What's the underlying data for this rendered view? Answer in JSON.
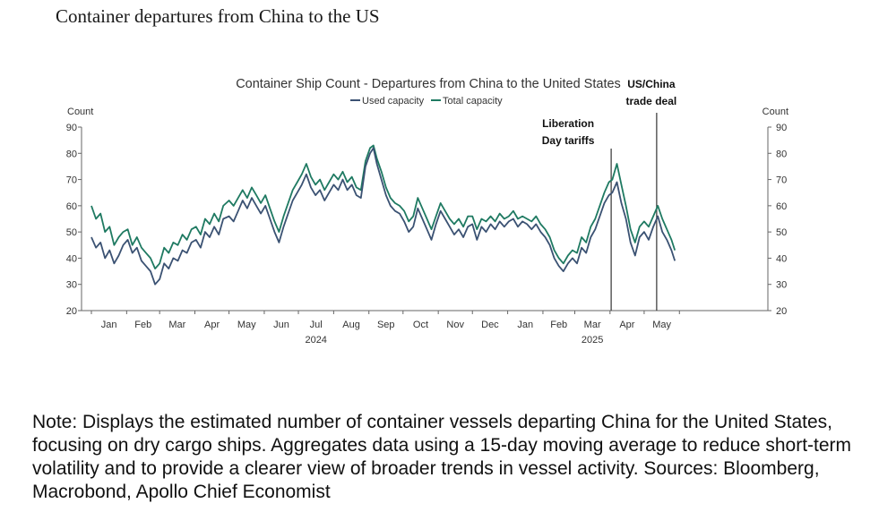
{
  "page": {
    "title": "Container departures from China to the US",
    "note": "Note: Displays the estimated number of container vessels departing China for the United States, focusing on dry cargo ships. Aggregates data using a 15-day moving average to reduce short-term volatility and to provide a clearer view of broader trends in vessel activity. Sources: Bloomberg, Macrobond, Apollo Chief Economist"
  },
  "chart_data": {
    "type": "line",
    "title": "Container Ship Count - Departures from China to the United States",
    "ylabel_left": "Count",
    "ylabel_right": "Count",
    "ylim": [
      20,
      90
    ],
    "yticks": [
      20,
      30,
      40,
      50,
      60,
      70,
      80,
      90
    ],
    "x_months": [
      "Jan",
      "Feb",
      "Mar",
      "Apr",
      "May",
      "Jun",
      "Jul",
      "Aug",
      "Sep",
      "Oct",
      "Nov",
      "Dec",
      "Jan",
      "Feb",
      "Mar",
      "Apr",
      "May"
    ],
    "x_years": [
      {
        "label": "2024",
        "month_index": 6
      },
      {
        "label": "2025",
        "month_index": 14
      }
    ],
    "legend_position": "top-center",
    "grid": false,
    "colors": {
      "used_capacity": "#3b5273",
      "total_capacity": "#1f7a62",
      "axis": "#666666",
      "text": "#333333"
    },
    "annotations": [
      {
        "label_lines": [
          "Liberation",
          "Day tariffs"
        ],
        "date": "2025-04-02"
      },
      {
        "label_lines": [
          "US/China",
          "trade deal"
        ],
        "date": "2025-05-12"
      }
    ],
    "series": [
      {
        "name": "Used capacity",
        "key": "used_capacity",
        "points": [
          [
            "2024-01-01",
            48
          ],
          [
            "2024-01-05",
            44
          ],
          [
            "2024-01-09",
            46
          ],
          [
            "2024-01-13",
            40
          ],
          [
            "2024-01-17",
            43
          ],
          [
            "2024-01-21",
            38
          ],
          [
            "2024-01-25",
            41
          ],
          [
            "2024-01-29",
            45
          ],
          [
            "2024-02-02",
            47
          ],
          [
            "2024-02-06",
            42
          ],
          [
            "2024-02-10",
            44
          ],
          [
            "2024-02-14",
            39
          ],
          [
            "2024-02-18",
            37
          ],
          [
            "2024-02-22",
            35
          ],
          [
            "2024-02-26",
            30
          ],
          [
            "2024-03-01",
            32
          ],
          [
            "2024-03-05",
            38
          ],
          [
            "2024-03-09",
            36
          ],
          [
            "2024-03-13",
            40
          ],
          [
            "2024-03-17",
            39
          ],
          [
            "2024-03-21",
            43
          ],
          [
            "2024-03-25",
            42
          ],
          [
            "2024-03-29",
            46
          ],
          [
            "2024-04-02",
            47
          ],
          [
            "2024-04-06",
            44
          ],
          [
            "2024-04-10",
            50
          ],
          [
            "2024-04-14",
            48
          ],
          [
            "2024-04-18",
            52
          ],
          [
            "2024-04-22",
            49
          ],
          [
            "2024-04-26",
            55
          ],
          [
            "2024-05-01",
            56
          ],
          [
            "2024-05-05",
            54
          ],
          [
            "2024-05-09",
            58
          ],
          [
            "2024-05-13",
            62
          ],
          [
            "2024-05-17",
            59
          ],
          [
            "2024-05-21",
            63
          ],
          [
            "2024-05-25",
            60
          ],
          [
            "2024-05-29",
            57
          ],
          [
            "2024-06-02",
            60
          ],
          [
            "2024-06-06",
            55
          ],
          [
            "2024-06-10",
            50
          ],
          [
            "2024-06-14",
            46
          ],
          [
            "2024-06-18",
            52
          ],
          [
            "2024-06-22",
            57
          ],
          [
            "2024-06-26",
            62
          ],
          [
            "2024-06-30",
            65
          ],
          [
            "2024-07-04",
            68
          ],
          [
            "2024-07-08",
            72
          ],
          [
            "2024-07-12",
            67
          ],
          [
            "2024-07-16",
            64
          ],
          [
            "2024-07-20",
            66
          ],
          [
            "2024-07-24",
            62
          ],
          [
            "2024-07-28",
            65
          ],
          [
            "2024-08-01",
            68
          ],
          [
            "2024-08-05",
            66
          ],
          [
            "2024-08-09",
            70
          ],
          [
            "2024-08-13",
            66
          ],
          [
            "2024-08-17",
            68
          ],
          [
            "2024-08-21",
            64
          ],
          [
            "2024-08-25",
            63
          ],
          [
            "2024-08-29",
            75
          ],
          [
            "2024-09-02",
            80
          ],
          [
            "2024-09-05",
            82
          ],
          [
            "2024-09-08",
            76
          ],
          [
            "2024-09-12",
            70
          ],
          [
            "2024-09-16",
            64
          ],
          [
            "2024-09-20",
            60
          ],
          [
            "2024-09-24",
            58
          ],
          [
            "2024-09-28",
            57
          ],
          [
            "2024-10-02",
            54
          ],
          [
            "2024-10-06",
            50
          ],
          [
            "2024-10-10",
            52
          ],
          [
            "2024-10-14",
            59
          ],
          [
            "2024-10-18",
            55
          ],
          [
            "2024-10-22",
            51
          ],
          [
            "2024-10-26",
            47
          ],
          [
            "2024-10-30",
            53
          ],
          [
            "2024-11-03",
            58
          ],
          [
            "2024-11-07",
            55
          ],
          [
            "2024-11-11",
            52
          ],
          [
            "2024-11-15",
            49
          ],
          [
            "2024-11-19",
            51
          ],
          [
            "2024-11-23",
            48
          ],
          [
            "2024-11-27",
            52
          ],
          [
            "2024-12-01",
            53
          ],
          [
            "2024-12-05",
            47
          ],
          [
            "2024-12-09",
            52
          ],
          [
            "2024-12-13",
            50
          ],
          [
            "2024-12-17",
            53
          ],
          [
            "2024-12-21",
            51
          ],
          [
            "2024-12-25",
            54
          ],
          [
            "2024-12-29",
            52
          ],
          [
            "2025-01-02",
            54
          ],
          [
            "2025-01-06",
            55
          ],
          [
            "2025-01-10",
            52
          ],
          [
            "2025-01-14",
            54
          ],
          [
            "2025-01-18",
            53
          ],
          [
            "2025-01-22",
            51
          ],
          [
            "2025-01-26",
            53
          ],
          [
            "2025-01-30",
            50
          ],
          [
            "2025-02-03",
            48
          ],
          [
            "2025-02-07",
            45
          ],
          [
            "2025-02-11",
            40
          ],
          [
            "2025-02-15",
            37
          ],
          [
            "2025-02-19",
            35
          ],
          [
            "2025-02-23",
            38
          ],
          [
            "2025-02-27",
            40
          ],
          [
            "2025-03-03",
            38
          ],
          [
            "2025-03-07",
            44
          ],
          [
            "2025-03-11",
            42
          ],
          [
            "2025-03-15",
            48
          ],
          [
            "2025-03-19",
            51
          ],
          [
            "2025-03-23",
            56
          ],
          [
            "2025-03-27",
            61
          ],
          [
            "2025-03-31",
            64
          ],
          [
            "2025-04-03",
            65
          ],
          [
            "2025-04-07",
            69
          ],
          [
            "2025-04-11",
            61
          ],
          [
            "2025-04-15",
            55
          ],
          [
            "2025-04-19",
            46
          ],
          [
            "2025-04-23",
            41
          ],
          [
            "2025-04-27",
            48
          ],
          [
            "2025-05-01",
            50
          ],
          [
            "2025-05-05",
            47
          ],
          [
            "2025-05-09",
            52
          ],
          [
            "2025-05-13",
            56
          ],
          [
            "2025-05-17",
            50
          ],
          [
            "2025-05-21",
            47
          ],
          [
            "2025-05-25",
            43
          ],
          [
            "2025-05-28",
            39
          ]
        ]
      },
      {
        "name": "Total capacity",
        "key": "total_capacity",
        "points": [
          [
            "2024-01-01",
            60
          ],
          [
            "2024-01-05",
            55
          ],
          [
            "2024-01-09",
            57
          ],
          [
            "2024-01-13",
            50
          ],
          [
            "2024-01-17",
            52
          ],
          [
            "2024-01-21",
            45
          ],
          [
            "2024-01-25",
            48
          ],
          [
            "2024-01-29",
            50
          ],
          [
            "2024-02-02",
            51
          ],
          [
            "2024-02-06",
            45
          ],
          [
            "2024-02-10",
            48
          ],
          [
            "2024-02-14",
            44
          ],
          [
            "2024-02-18",
            42
          ],
          [
            "2024-02-22",
            40
          ],
          [
            "2024-02-26",
            36
          ],
          [
            "2024-03-01",
            38
          ],
          [
            "2024-03-05",
            44
          ],
          [
            "2024-03-09",
            42
          ],
          [
            "2024-03-13",
            46
          ],
          [
            "2024-03-17",
            45
          ],
          [
            "2024-03-21",
            49
          ],
          [
            "2024-03-25",
            47
          ],
          [
            "2024-03-29",
            51
          ],
          [
            "2024-04-02",
            52
          ],
          [
            "2024-04-06",
            49
          ],
          [
            "2024-04-10",
            55
          ],
          [
            "2024-04-14",
            53
          ],
          [
            "2024-04-18",
            57
          ],
          [
            "2024-04-22",
            54
          ],
          [
            "2024-04-26",
            60
          ],
          [
            "2024-05-01",
            62
          ],
          [
            "2024-05-05",
            60
          ],
          [
            "2024-05-09",
            63
          ],
          [
            "2024-05-13",
            66
          ],
          [
            "2024-05-17",
            63
          ],
          [
            "2024-05-21",
            67
          ],
          [
            "2024-05-25",
            64
          ],
          [
            "2024-05-29",
            61
          ],
          [
            "2024-06-02",
            64
          ],
          [
            "2024-06-06",
            59
          ],
          [
            "2024-06-10",
            54
          ],
          [
            "2024-06-14",
            50
          ],
          [
            "2024-06-18",
            56
          ],
          [
            "2024-06-22",
            61
          ],
          [
            "2024-06-26",
            66
          ],
          [
            "2024-06-30",
            69
          ],
          [
            "2024-07-04",
            72
          ],
          [
            "2024-07-08",
            76
          ],
          [
            "2024-07-12",
            71
          ],
          [
            "2024-07-16",
            68
          ],
          [
            "2024-07-20",
            70
          ],
          [
            "2024-07-24",
            66
          ],
          [
            "2024-07-28",
            69
          ],
          [
            "2024-08-01",
            72
          ],
          [
            "2024-08-05",
            70
          ],
          [
            "2024-08-09",
            73
          ],
          [
            "2024-08-13",
            69
          ],
          [
            "2024-08-17",
            71
          ],
          [
            "2024-08-21",
            67
          ],
          [
            "2024-08-25",
            66
          ],
          [
            "2024-08-29",
            77
          ],
          [
            "2024-09-02",
            82
          ],
          [
            "2024-09-05",
            83
          ],
          [
            "2024-09-08",
            78
          ],
          [
            "2024-09-12",
            73
          ],
          [
            "2024-09-16",
            67
          ],
          [
            "2024-09-20",
            63
          ],
          [
            "2024-09-24",
            61
          ],
          [
            "2024-09-28",
            60
          ],
          [
            "2024-10-02",
            58
          ],
          [
            "2024-10-06",
            54
          ],
          [
            "2024-10-10",
            56
          ],
          [
            "2024-10-14",
            63
          ],
          [
            "2024-10-18",
            59
          ],
          [
            "2024-10-22",
            55
          ],
          [
            "2024-10-26",
            51
          ],
          [
            "2024-10-30",
            56
          ],
          [
            "2024-11-03",
            61
          ],
          [
            "2024-11-07",
            58
          ],
          [
            "2024-11-11",
            55
          ],
          [
            "2024-11-15",
            53
          ],
          [
            "2024-11-19",
            55
          ],
          [
            "2024-11-23",
            52
          ],
          [
            "2024-11-27",
            56
          ],
          [
            "2024-12-01",
            56
          ],
          [
            "2024-12-05",
            51
          ],
          [
            "2024-12-09",
            55
          ],
          [
            "2024-12-13",
            54
          ],
          [
            "2024-12-17",
            56
          ],
          [
            "2024-12-21",
            54
          ],
          [
            "2024-12-25",
            57
          ],
          [
            "2024-12-29",
            55
          ],
          [
            "2025-01-02",
            56
          ],
          [
            "2025-01-06",
            58
          ],
          [
            "2025-01-10",
            55
          ],
          [
            "2025-01-14",
            56
          ],
          [
            "2025-01-18",
            55
          ],
          [
            "2025-01-22",
            54
          ],
          [
            "2025-01-26",
            56
          ],
          [
            "2025-01-30",
            53
          ],
          [
            "2025-02-03",
            51
          ],
          [
            "2025-02-07",
            48
          ],
          [
            "2025-02-11",
            43
          ],
          [
            "2025-02-15",
            40
          ],
          [
            "2025-02-19",
            38
          ],
          [
            "2025-02-23",
            41
          ],
          [
            "2025-02-27",
            43
          ],
          [
            "2025-03-03",
            42
          ],
          [
            "2025-03-07",
            48
          ],
          [
            "2025-03-11",
            46
          ],
          [
            "2025-03-15",
            52
          ],
          [
            "2025-03-19",
            55
          ],
          [
            "2025-03-23",
            60
          ],
          [
            "2025-03-27",
            65
          ],
          [
            "2025-03-31",
            69
          ],
          [
            "2025-04-03",
            70
          ],
          [
            "2025-04-07",
            76
          ],
          [
            "2025-04-11",
            68
          ],
          [
            "2025-04-15",
            60
          ],
          [
            "2025-04-19",
            51
          ],
          [
            "2025-04-23",
            46
          ],
          [
            "2025-04-27",
            52
          ],
          [
            "2025-05-01",
            54
          ],
          [
            "2025-05-05",
            52
          ],
          [
            "2025-05-09",
            56
          ],
          [
            "2025-05-13",
            60
          ],
          [
            "2025-05-17",
            55
          ],
          [
            "2025-05-21",
            51
          ],
          [
            "2025-05-25",
            47
          ],
          [
            "2025-05-28",
            43
          ]
        ]
      }
    ]
  }
}
